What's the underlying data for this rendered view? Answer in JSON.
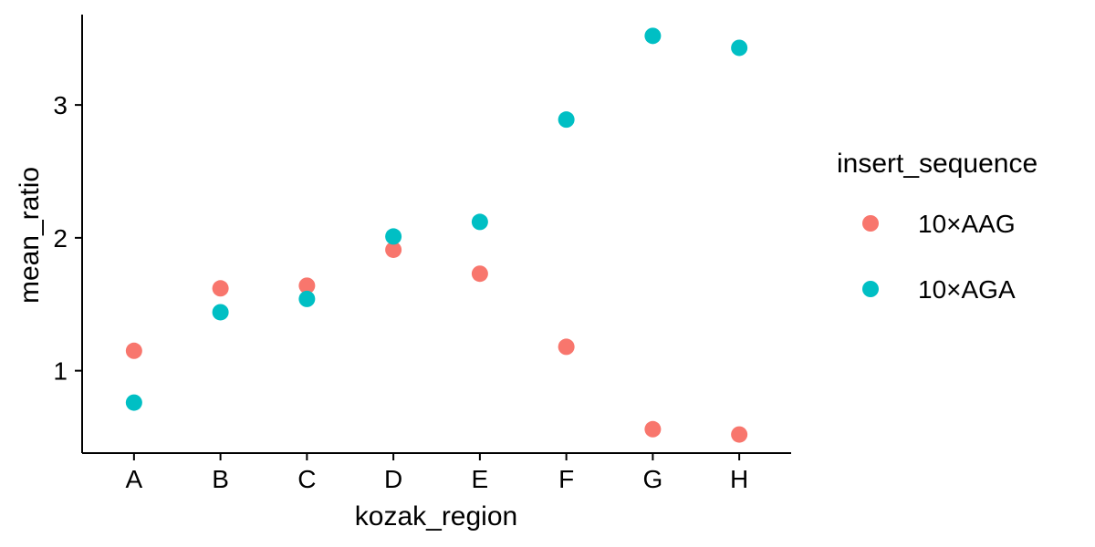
{
  "chart_data": {
    "type": "scatter",
    "xlabel": "kozak_region",
    "ylabel": "mean_ratio",
    "categories": [
      "A",
      "B",
      "C",
      "D",
      "E",
      "F",
      "G",
      "H"
    ],
    "yticks": [
      "1",
      "2",
      "3"
    ],
    "ylim": [
      0.38,
      3.68
    ],
    "grid": false,
    "legend": {
      "title": "insert_sequence",
      "position": "right"
    },
    "series": [
      {
        "name": "10×AAG",
        "color": "#F8766D",
        "values": [
          1.15,
          1.62,
          1.64,
          1.91,
          1.73,
          1.18,
          0.56,
          0.52
        ]
      },
      {
        "name": "10×AGA",
        "color": "#00BFC4",
        "values": [
          0.76,
          1.44,
          1.54,
          2.01,
          2.12,
          2.89,
          3.52,
          3.43
        ]
      }
    ]
  }
}
